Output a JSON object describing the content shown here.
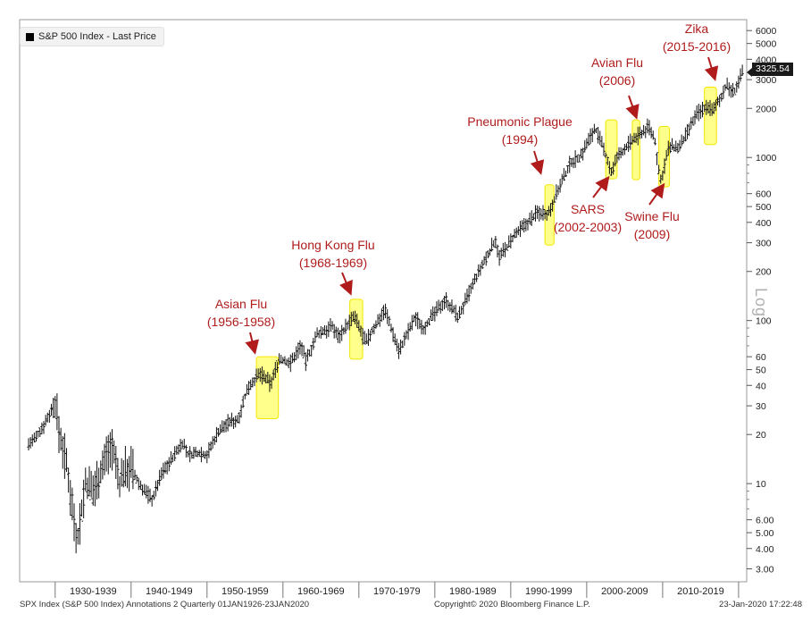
{
  "chart_data": {
    "type": "line",
    "style": "ohlc-bars",
    "scale": "log",
    "legend": {
      "label": "S&P 500 Index - Last Price",
      "placement": "top-left"
    },
    "last_price": "3325.54",
    "axis_label": "Log",
    "ylim": [
      2.5,
      7000
    ],
    "y_ticks": [
      {
        "v": 6000,
        "label": "6000"
      },
      {
        "v": 5000,
        "label": "5000"
      },
      {
        "v": 4000,
        "label": "4000"
      },
      {
        "v": 3000,
        "label": "3000"
      },
      {
        "v": 2000,
        "label": "2000"
      },
      {
        "v": 1000,
        "label": "1000"
      },
      {
        "v": 600,
        "label": "600"
      },
      {
        "v": 500,
        "label": "500"
      },
      {
        "v": 400,
        "label": "400"
      },
      {
        "v": 300,
        "label": "300"
      },
      {
        "v": 200,
        "label": "200"
      },
      {
        "v": 100,
        "label": "100"
      },
      {
        "v": 60,
        "label": "60"
      },
      {
        "v": 50,
        "label": "50"
      },
      {
        "v": 40,
        "label": "40"
      },
      {
        "v": 30,
        "label": "30"
      },
      {
        "v": 20,
        "label": "20"
      },
      {
        "v": 10,
        "label": "10"
      },
      {
        "v": 6,
        "label": "6.00"
      },
      {
        "v": 5,
        "label": "5.00"
      },
      {
        "v": 4,
        "label": "4.00"
      },
      {
        "v": 3,
        "label": "3.00"
      }
    ],
    "x_range": [
      1926.0,
      2020.1
    ],
    "x_dividers": [
      1929.5,
      1939.5,
      1949.5,
      1959.5,
      1969.5,
      1979.5,
      1989.5,
      1999.5,
      2009.5,
      2019.5
    ],
    "x_labels": [
      {
        "x": 1934.5,
        "label": "1930-1939"
      },
      {
        "x": 1944.5,
        "label": "1940-1949"
      },
      {
        "x": 1954.5,
        "label": "1950-1959"
      },
      {
        "x": 1964.5,
        "label": "1960-1969"
      },
      {
        "x": 1974.5,
        "label": "1970-1979"
      },
      {
        "x": 1984.5,
        "label": "1980-1989"
      },
      {
        "x": 1994.5,
        "label": "1990-1999"
      },
      {
        "x": 2004.5,
        "label": "2000-2009"
      },
      {
        "x": 2014.5,
        "label": "2010-2019"
      }
    ],
    "price_series": [
      [
        1926.0,
        17.5
      ],
      [
        1927.0,
        19
      ],
      [
        1928.0,
        23
      ],
      [
        1929.5,
        31
      ],
      [
        1930.0,
        21
      ],
      [
        1931.0,
        13
      ],
      [
        1932.4,
        4.5
      ],
      [
        1933.5,
        10
      ],
      [
        1934.5,
        9
      ],
      [
        1935.5,
        12
      ],
      [
        1936.5,
        16
      ],
      [
        1937.0,
        17
      ],
      [
        1938.0,
        10
      ],
      [
        1938.5,
        12
      ],
      [
        1939.5,
        12.5
      ],
      [
        1940.5,
        10
      ],
      [
        1942.3,
        8
      ],
      [
        1943.5,
        11.5
      ],
      [
        1945.0,
        14.5
      ],
      [
        1946.3,
        18
      ],
      [
        1947.0,
        15
      ],
      [
        1948.5,
        15.5
      ],
      [
        1949.5,
        15
      ],
      [
        1951.0,
        21
      ],
      [
        1952.5,
        24
      ],
      [
        1953.5,
        24.5
      ],
      [
        1955.0,
        40
      ],
      [
        1956.5,
        47
      ],
      [
        1957.9,
        41
      ],
      [
        1959.0,
        58
      ],
      [
        1960.5,
        55
      ],
      [
        1961.9,
        71
      ],
      [
        1962.5,
        56
      ],
      [
        1964.0,
        82
      ],
      [
        1966.0,
        92
      ],
      [
        1966.8,
        80
      ],
      [
        1968.9,
        106
      ],
      [
        1970.4,
        73
      ],
      [
        1972.9,
        118
      ],
      [
        1974.8,
        65
      ],
      [
        1976.9,
        105
      ],
      [
        1978.0,
        90
      ],
      [
        1980.9,
        135
      ],
      [
        1982.6,
        105
      ],
      [
        1985.0,
        185
      ],
      [
        1987.6,
        320
      ],
      [
        1987.9,
        240
      ],
      [
        1990.0,
        330
      ],
      [
        1993.0,
        460
      ],
      [
        1994.5,
        460
      ],
      [
        1995.5,
        600
      ],
      [
        1997.5,
        950
      ],
      [
        1998.6,
        1000
      ],
      [
        2000.6,
        1520
      ],
      [
        2001.8,
        1100
      ],
      [
        2002.8,
        800
      ],
      [
        2003.5,
        1000
      ],
      [
        2005.0,
        1200
      ],
      [
        2007.7,
        1550
      ],
      [
        2008.5,
        1250
      ],
      [
        2009.2,
        700
      ],
      [
        2010.3,
        1150
      ],
      [
        2011.7,
        1150
      ],
      [
        2012.8,
        1420
      ],
      [
        2014.0,
        1850
      ],
      [
        2015.5,
        2080
      ],
      [
        2016.1,
        1900
      ],
      [
        2017.9,
        2750
      ],
      [
        2018.9,
        2500
      ],
      [
        2020.06,
        3325.54
      ]
    ],
    "highlight_periods": [
      {
        "x0": 1956.0,
        "x1": 1958.9,
        "y0": 25,
        "y1": 60
      },
      {
        "x0": 1968.3,
        "x1": 1970.0,
        "y0": 58,
        "y1": 135
      },
      {
        "x0": 1994.0,
        "x1": 1995.2,
        "y0": 290,
        "y1": 680
      },
      {
        "x0": 2002.0,
        "x1": 2003.5,
        "y0": 740,
        "y1": 1700
      },
      {
        "x0": 2005.5,
        "x1": 2006.5,
        "y0": 730,
        "y1": 1700
      },
      {
        "x0": 2009.0,
        "x1": 2010.4,
        "y0": 660,
        "y1": 1550
      },
      {
        "x0": 2015.0,
        "x1": 2016.6,
        "y0": 1200,
        "y1": 2700
      }
    ],
    "annotations": [
      {
        "label": "Asian Flu",
        "sub": "(1956-1958)",
        "tx": 270,
        "ty": 330,
        "ax1": 280,
        "ay1": 372,
        "ax2": 285,
        "ay2": 393
      },
      {
        "label": "Hong Kong Flu",
        "sub": "(1968-1969)",
        "tx": 373,
        "ty": 264,
        "ax1": 383,
        "ay1": 305,
        "ax2": 392,
        "ay2": 327
      },
      {
        "label": "Pneumonic Plague",
        "sub": "(1994)",
        "tx": 582,
        "ty": 126,
        "ax1": 598,
        "ay1": 169,
        "ax2": 605,
        "ay2": 192
      },
      {
        "label": "Avian Flu",
        "sub": "(2006)",
        "tx": 691,
        "ty": 60,
        "ax1": 704,
        "ay1": 107,
        "ax2": 712,
        "ay2": 130
      },
      {
        "label": "Zika",
        "sub": "(2015-2016)",
        "tx": 780,
        "ty": 22,
        "ax1": 793,
        "ay1": 64,
        "ax2": 800,
        "ay2": 87
      },
      {
        "label": "SARS",
        "sub": "(2002-2003)",
        "tx": 658,
        "ty": 224,
        "ax1": 664,
        "ay1": 221,
        "ax2": 680,
        "ay2": 200
      },
      {
        "label": "Swine Flu",
        "sub": "(2009)",
        "tx": 730,
        "ty": 232,
        "ax1": 727,
        "ay1": 229,
        "ax2": 742,
        "ay2": 208
      }
    ]
  },
  "footer": {
    "left": "SPX Index (S&P 500 Index) Annotations 2  Quarterly 01JAN1926-23JAN2020",
    "mid": "Copyright© 2020 Bloomberg Finance L.P.",
    "right": "23-Jan-2020  17:22:48"
  }
}
